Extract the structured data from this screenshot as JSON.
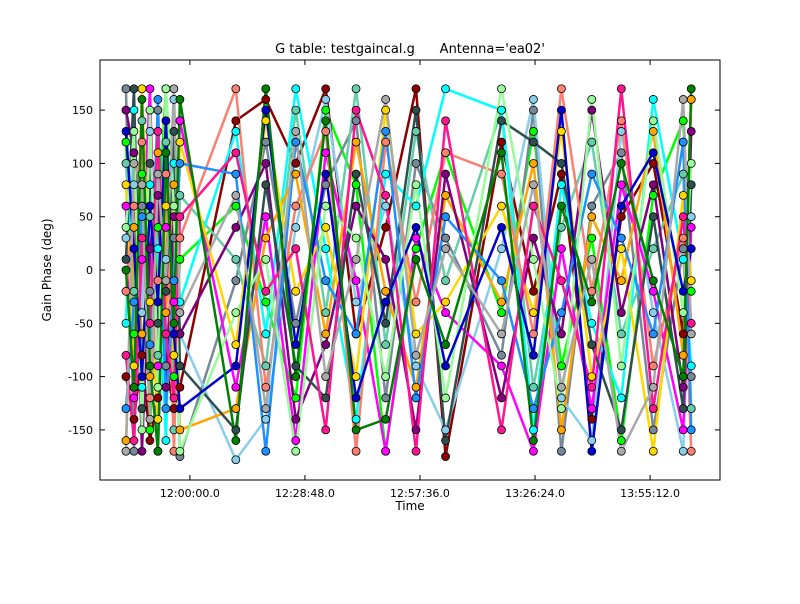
{
  "chart_data": {
    "type": "line",
    "title": "G table: testgaincal.g      Antenna='ea02'",
    "xlabel": "Time",
    "ylabel": "Gain Phase (deg)",
    "xlim": [
      "11:37:30",
      "14:12:42"
    ],
    "ylim": [
      -197,
      197
    ],
    "grid": false,
    "x_ticks": [
      "12:00:00.0",
      "12:28:48.0",
      "12:57:36.0",
      "13:26:24.0",
      "13:55:12.0"
    ],
    "y_ticks": [
      150,
      100,
      50,
      0,
      -50,
      -100,
      -150
    ],
    "x": [
      "11:44:00",
      "11:46:00",
      "11:48:00",
      "11:50:00",
      "11:52:00",
      "11:54:00",
      "11:56:00",
      "11:57:30",
      "12:11:30",
      "12:19:00",
      "12:26:30",
      "12:34:00",
      "12:41:36",
      "12:49:00",
      "12:56:36",
      "13:04:00",
      "13:18:00",
      "13:26:00",
      "13:33:00",
      "13:40:36",
      "13:48:00",
      "13:56:00",
      "14:03:30",
      "14:05:30"
    ],
    "series": [
      {
        "color": "#00ff00",
        "values": [
          120,
          -60,
          90,
          -150,
          40,
          170,
          -100,
          10,
          60,
          -30,
          -120,
          150,
          80,
          -170,
          20,
          110,
          -40,
          130,
          -90,
          30,
          -160,
          70,
          140,
          -20
        ]
      },
      {
        "color": "#8b0000",
        "values": [
          -100,
          -140,
          -80,
          -160,
          -120,
          -90,
          -130,
          -110,
          140,
          160,
          100,
          170,
          -60,
          40,
          170,
          -175,
          120,
          -20,
          90,
          -140,
          50,
          100,
          -60,
          160
        ]
      },
      {
        "color": "#778899",
        "values": [
          170,
          -170,
          60,
          -20,
          150,
          -90,
          30,
          -175,
          -10,
          120,
          -50,
          80,
          140,
          -120,
          100,
          30,
          -80,
          150,
          -170,
          60,
          110,
          -150,
          20,
          -100
        ]
      },
      {
        "color": "#87ceeb",
        "values": [
          30,
          80,
          -40,
          130,
          -170,
          10,
          160,
          -60,
          -178,
          -140,
          40,
          160,
          -30,
          60,
          -90,
          -150,
          20,
          160,
          -120,
          -160,
          130,
          -40,
          -170,
          50
        ]
      },
      {
        "color": "#66cdaa",
        "values": [
          100,
          -20,
          140,
          50,
          -80,
          120,
          -150,
          70,
          10,
          -90,
          150,
          -40,
          170,
          -70,
          130,
          -10,
          150,
          -110,
          40,
          120,
          -60,
          20,
          90,
          -130
        ]
      },
      {
        "color": "#00ffff",
        "values": [
          -50,
          150,
          -110,
          80,
          20,
          -160,
          100,
          -30,
          130,
          -60,
          170,
          20,
          -140,
          90,
          60,
          170,
          150,
          -150,
          80,
          -50,
          -120,
          160,
          10,
          -90
        ]
      },
      {
        "color": "#ff00ff",
        "values": [
          60,
          -120,
          10,
          170,
          -90,
          40,
          -30,
          140,
          -110,
          50,
          -160,
          110,
          -10,
          -170,
          30,
          -40,
          -90,
          -170,
          20,
          -130,
          80,
          -20,
          -150,
          40
        ]
      },
      {
        "color": "#ffa500",
        "values": [
          -160,
          40,
          -60,
          -100,
          110,
          -40,
          80,
          -150,
          -130,
          30,
          90,
          -60,
          120,
          -20,
          -110,
          70,
          -30,
          100,
          -150,
          50,
          -10,
          130,
          -80,
          160
        ]
      },
      {
        "color": "#ffd700",
        "values": [
          80,
          -90,
          170,
          -30,
          -140,
          60,
          -80,
          120,
          -70,
          140,
          -20,
          40,
          -100,
          150,
          -60,
          -30,
          60,
          -40,
          130,
          -100,
          20,
          -170,
          70,
          -10
        ]
      },
      {
        "color": "#800080",
        "values": [
          150,
          110,
          -170,
          20,
          70,
          -110,
          50,
          -60,
          40,
          100,
          -140,
          -70,
          60,
          10,
          -150,
          90,
          -120,
          30,
          -60,
          150,
          -40,
          80,
          -110,
          130
        ]
      },
      {
        "color": "#fa8072",
        "values": [
          -20,
          60,
          120,
          -120,
          -10,
          90,
          -170,
          30,
          170,
          -110,
          60,
          130,
          -170,
          120,
          -30,
          110,
          90,
          -60,
          170,
          -20,
          140,
          -90,
          30,
          -170
        ]
      },
      {
        "color": "#2f4f4f",
        "values": [
          10,
          170,
          -130,
          100,
          -50,
          -20,
          130,
          -90,
          -150,
          80,
          -90,
          -120,
          90,
          -50,
          150,
          -160,
          140,
          120,
          100,
          -70,
          -150,
          50,
          -130,
          80
        ]
      },
      {
        "color": "#1e90ff",
        "values": [
          -130,
          -30,
          50,
          -70,
          160,
          -130,
          -10,
          100,
          90,
          -170,
          120,
          -10,
          -60,
          130,
          -120,
          50,
          -10,
          -130,
          -40,
          90,
          30,
          -60,
          120,
          -150
        ]
      },
      {
        "color": "#98fb98",
        "values": [
          40,
          130,
          -150,
          150,
          -110,
          170,
          60,
          -170,
          -40,
          10,
          -170,
          60,
          30,
          -100,
          80,
          -120,
          170,
          10,
          -130,
          160,
          -90,
          140,
          -40,
          100
        ]
      },
      {
        "color": "#ff1493",
        "values": [
          -80,
          -160,
          30,
          -50,
          130,
          -60,
          -120,
          50,
          110,
          -20,
          20,
          -150,
          150,
          70,
          -170,
          140,
          -150,
          60,
          -10,
          -110,
          170,
          -130,
          50,
          -50
        ]
      },
      {
        "color": "#0000cd",
        "values": [
          130,
          20,
          -100,
          60,
          -30,
          140,
          -60,
          -130,
          -90,
          150,
          -70,
          90,
          -120,
          -30,
          40,
          -90,
          40,
          -80,
          150,
          -170,
          60,
          110,
          -20,
          20
        ]
      },
      {
        "color": "#a9a9a9",
        "values": [
          -170,
          100,
          80,
          -140,
          90,
          -10,
          170,
          -40,
          70,
          -130,
          130,
          -100,
          10,
          160,
          -80,
          20,
          -60,
          80,
          -110,
          10,
          -170,
          -110,
          160,
          -60
        ]
      },
      {
        "color": "#008000",
        "values": [
          0,
          -110,
          160,
          -90,
          -170,
          110,
          -50,
          160,
          -160,
          170,
          -100,
          140,
          -150,
          -140,
          10,
          -70,
          110,
          -160,
          60,
          -30,
          100,
          -10,
          -100,
          170
        ]
      }
    ]
  }
}
